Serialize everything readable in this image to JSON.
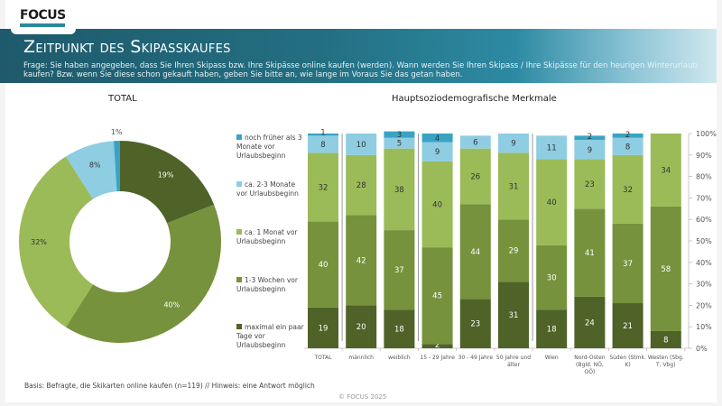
{
  "header": {
    "logo_text": "FOCUS",
    "title": "Zeitpunkt des Skipasskaufes",
    "question": "Frage: Sie haben angegeben, dass Sie Ihren Skipass bzw. Ihre Skipässe online kaufen (werden). Wann werden Sie Ihren Skipass / Ihre Skipässe für den heurigen Winterurlaub kaufen? Bzw. wenn Sie diese schon gekauft haben, geben Sie bitte an, wie lange im Voraus Sie das getan haben."
  },
  "colors": {
    "noch_frueher": "#3aa3c4",
    "zwei_drei_monate": "#8ecde2",
    "ein_monat": "#9bbb58",
    "ein_drei_wochen": "#76923c",
    "paar_tage": "#4f6228"
  },
  "footer": {
    "basis": "Basis: Befragte, die Skikarten online kaufen (n=119) // Hinweis: eine Antwort möglich",
    "copyright": "© FOCUS 2025"
  },
  "chart_data": [
    {
      "type": "pie",
      "title": "TOTAL",
      "donut": true,
      "categories": [
        "maximal ein paar Tage vor Urlaubsbeginn",
        "1-3 Wochen vor Urlaubsbeginn",
        "ca. 1 Monat vor Urlaubsbeginn",
        "ca. 2-3 Monate vor Urlaubsbeginn",
        "noch früher als 3 Monate vor Urlaubsbeginn"
      ],
      "values": [
        19,
        40,
        32,
        8,
        1
      ],
      "labels": [
        "19%",
        "40%",
        "32%",
        "8%",
        "1%"
      ]
    },
    {
      "type": "bar",
      "stacked": true,
      "percent": true,
      "title": "Hauptsoziodemografische Merkmale",
      "categories": [
        "TOTAL",
        "männlich",
        "weiblich",
        "15 - 29 Jahre",
        "30 - 49 Jahre",
        "50 Jahre und älter",
        "Wien",
        "Nord-Osten (Bgld. NÖ, OÖ)",
        "Süden (Stmk. K)",
        "Westen (Sbg. T, Vbg)"
      ],
      "series": [
        {
          "name": "maximal ein paar Tage vor Urlaubsbeginn",
          "values": [
            19,
            20,
            18,
            2,
            23,
            31,
            18,
            24,
            21,
            8
          ]
        },
        {
          "name": "1-3 Wochen vor Urlaubsbeginn",
          "values": [
            40,
            42,
            37,
            45,
            44,
            29,
            30,
            41,
            37,
            58
          ]
        },
        {
          "name": "ca. 1 Monat vor Urlaubsbeginn",
          "values": [
            32,
            28,
            38,
            40,
            26,
            31,
            40,
            23,
            32,
            34
          ]
        },
        {
          "name": "ca. 2-3 Monate vor Urlaubsbeginn",
          "values": [
            8,
            10,
            5,
            9,
            6,
            9,
            11,
            9,
            8,
            0
          ]
        },
        {
          "name": "noch früher als 3 Monate vor Urlaubsbeginn",
          "values": [
            1,
            0,
            3,
            4,
            0,
            0,
            0,
            2,
            2,
            0
          ]
        }
      ],
      "legend": {
        "placement": "left",
        "entries": [
          "noch früher als 3 Monate vor Urlaubsbeginn",
          "ca. 2-3 Monate vor Urlaubsbeginn",
          "ca. 1 Monat vor Urlaubsbeginn",
          "1-3 Wochen vor Urlaubsbeginn",
          "maximal ein paar Tage vor Urlaubsbeginn"
        ]
      },
      "yaxis": {
        "position": "right",
        "ylim": [
          0,
          100
        ],
        "ticks": [
          "0%",
          "10%",
          "20%",
          "30%",
          "40%",
          "50%",
          "60%",
          "70%",
          "80%",
          "90%",
          "100%"
        ]
      },
      "group_separators_after": [
        "TOTAL",
        "weiblich",
        "50 Jahre und älter"
      ]
    }
  ]
}
